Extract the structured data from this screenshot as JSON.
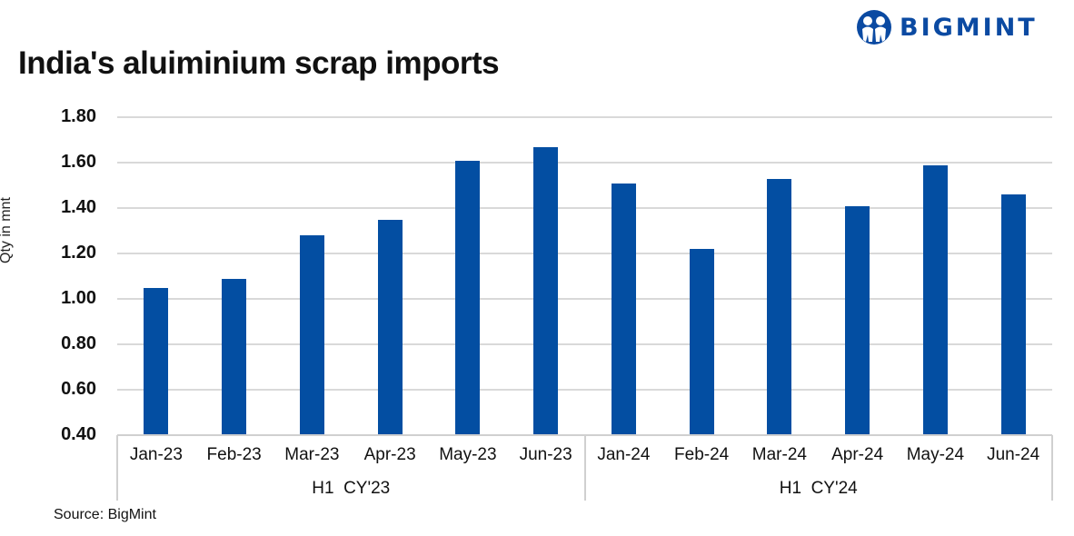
{
  "brand": {
    "name": "BIGMINT",
    "color": "#0b4aa2"
  },
  "chart_data": {
    "type": "bar",
    "title": "India's aluiminium scrap imports",
    "xlabel": "",
    "ylabel": "Qty in mnt",
    "ylim": [
      0.4,
      1.8
    ],
    "yticks": [
      "1.80",
      "1.60",
      "1.40",
      "1.20",
      "1.00",
      "0.80",
      "0.60",
      "0.40"
    ],
    "grid": true,
    "legend": null,
    "bar_color": "#034ea2",
    "categories": [
      "Jan-23",
      "Feb-23",
      "Mar-23",
      "Apr-23",
      "May-23",
      "Jun-23",
      "Jan-24",
      "Feb-24",
      "Mar-24",
      "Apr-24",
      "May-24",
      "Jun-24"
    ],
    "groups": [
      {
        "label": "H1  CY'23",
        "categories": [
          "Jan-23",
          "Feb-23",
          "Mar-23",
          "Apr-23",
          "May-23",
          "Jun-23"
        ]
      },
      {
        "label": "H1  CY'24",
        "categories": [
          "Jan-24",
          "Feb-24",
          "Mar-24",
          "Apr-24",
          "May-24",
          "Jun-24"
        ]
      }
    ],
    "values": [
      1.05,
      1.09,
      1.28,
      1.35,
      1.61,
      1.67,
      1.51,
      1.22,
      1.53,
      1.41,
      1.59,
      1.46
    ]
  },
  "footer": {
    "source": "Source: BigMint"
  }
}
